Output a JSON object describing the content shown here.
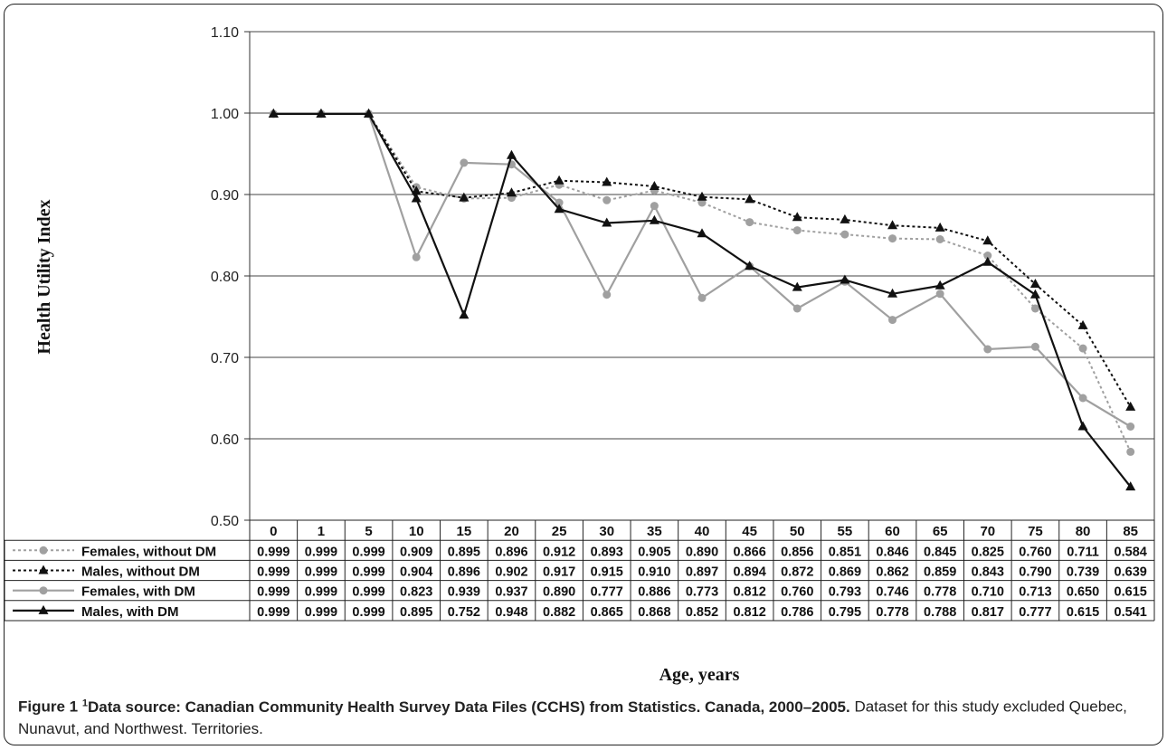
{
  "chart_data": {
    "type": "line",
    "title": "",
    "xlabel": "Age, years",
    "ylabel": "Health Utility Index",
    "ylim": [
      0.5,
      1.1
    ],
    "yticks": [
      "0.50",
      "0.60",
      "0.70",
      "0.80",
      "0.90",
      "1.00",
      "1.10"
    ],
    "grid": true,
    "legend": "table-bottom",
    "categories": [
      "0",
      "1",
      "5",
      "10",
      "15",
      "20",
      "25",
      "30",
      "35",
      "40",
      "45",
      "50",
      "55",
      "60",
      "65",
      "70",
      "75",
      "80",
      "85"
    ],
    "series": [
      {
        "name": "Females, without DM",
        "color": "#a0a0a0",
        "dash": "dotted",
        "marker": "circle",
        "values": [
          0.999,
          0.999,
          0.999,
          0.909,
          0.895,
          0.896,
          0.912,
          0.893,
          0.905,
          0.89,
          0.866,
          0.856,
          0.851,
          0.846,
          0.845,
          0.825,
          0.76,
          0.711,
          0.584
        ],
        "labels": [
          "0.999",
          "0.999",
          "0.999",
          "0.909",
          "0.895",
          "0.896",
          "0.912",
          "0.893",
          "0.905",
          "0.890",
          "0.866",
          "0.856",
          "0.851",
          "0.846",
          "0.845",
          "0.825",
          "0.760",
          "0.711",
          "0.584"
        ]
      },
      {
        "name": "Males, without DM",
        "color": "#111111",
        "dash": "dotted",
        "marker": "triangle",
        "values": [
          0.999,
          0.999,
          0.999,
          0.904,
          0.896,
          0.902,
          0.917,
          0.915,
          0.91,
          0.897,
          0.894,
          0.872,
          0.869,
          0.862,
          0.859,
          0.843,
          0.79,
          0.739,
          0.639
        ],
        "labels": [
          "0.999",
          "0.999",
          "0.999",
          "0.904",
          "0.896",
          "0.902",
          "0.917",
          "0.915",
          "0.910",
          "0.897",
          "0.894",
          "0.872",
          "0.869",
          "0.862",
          "0.859",
          "0.843",
          "0.790",
          "0.739",
          "0.639"
        ]
      },
      {
        "name": "Females, with DM",
        "color": "#a0a0a0",
        "dash": "solid",
        "marker": "circle",
        "values": [
          0.999,
          0.999,
          0.999,
          0.823,
          0.939,
          0.937,
          0.89,
          0.777,
          0.886,
          0.773,
          0.812,
          0.76,
          0.793,
          0.746,
          0.778,
          0.71,
          0.713,
          0.65,
          0.615
        ],
        "labels": [
          "0.999",
          "0.999",
          "0.999",
          "0.823",
          "0.939",
          "0.937",
          "0.890",
          "0.777",
          "0.886",
          "0.773",
          "0.812",
          "0.760",
          "0.793",
          "0.746",
          "0.778",
          "0.710",
          "0.713",
          "0.650",
          "0.615"
        ]
      },
      {
        "name": "Males, with DM",
        "color": "#111111",
        "dash": "solid",
        "marker": "triangle",
        "values": [
          0.999,
          0.999,
          0.999,
          0.895,
          0.752,
          0.948,
          0.882,
          0.865,
          0.868,
          0.852,
          0.812,
          0.786,
          0.795,
          0.778,
          0.788,
          0.817,
          0.777,
          0.615,
          0.541
        ],
        "labels": [
          "0.999",
          "0.999",
          "0.999",
          "0.895",
          "0.752",
          "0.948",
          "0.882",
          "0.865",
          "0.868",
          "0.852",
          "0.812",
          "0.786",
          "0.795",
          "0.778",
          "0.788",
          "0.817",
          "0.777",
          "0.615",
          "0.541"
        ]
      }
    ]
  },
  "caption": {
    "label": "Figure 1",
    "superscript": "1",
    "bold_text": "Data source: Canadian Community Health Survey Data Files (CCHS) from Statistics. Canada, 2000–2005.",
    "text": " Dataset for this study excluded Quebec, Nunavut, and Northwest. Territories."
  }
}
